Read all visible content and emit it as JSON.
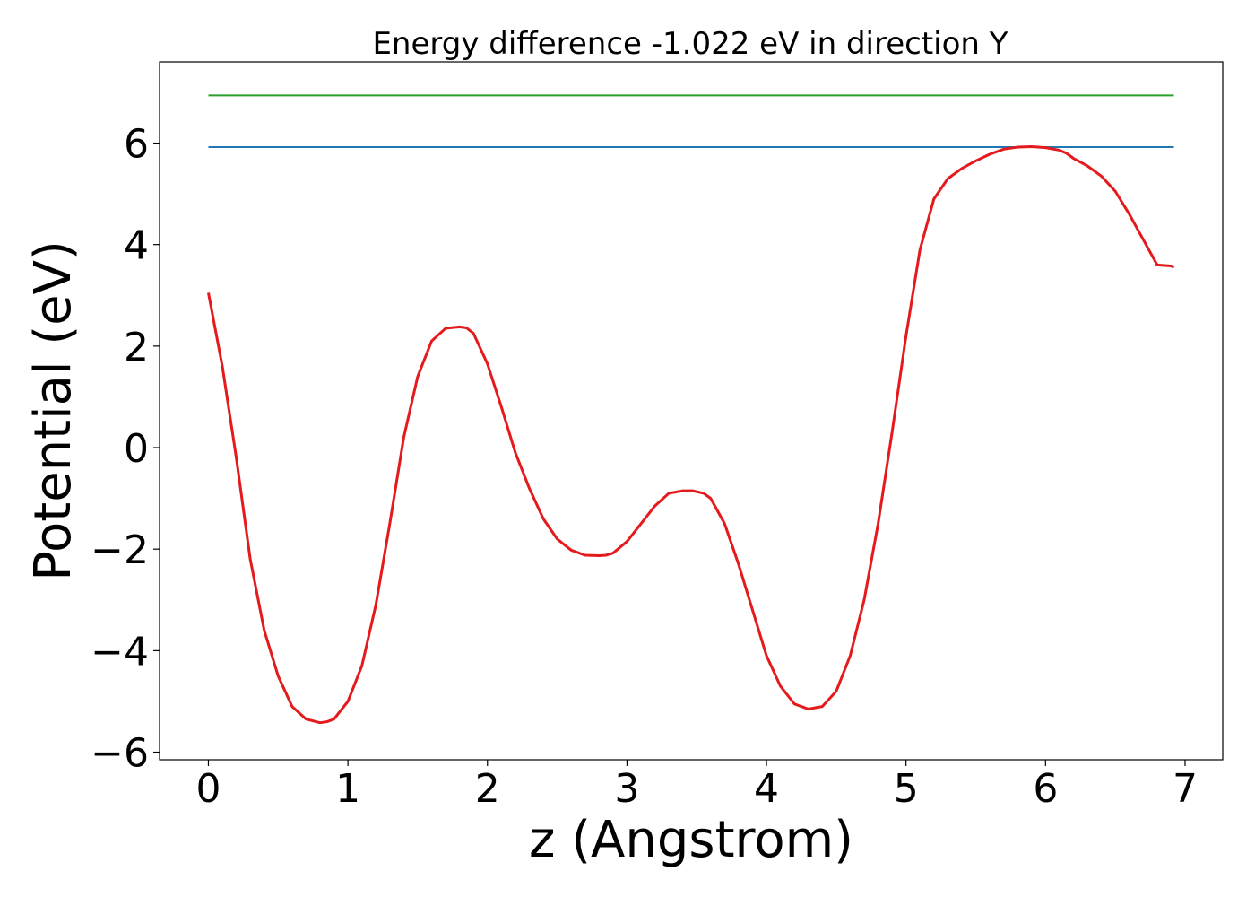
{
  "chart_data": {
    "type": "line",
    "title": "Energy difference -1.022 eV in direction Y",
    "xlabel": "z (Angstrom)",
    "ylabel": "Potential (eV)",
    "xlim": [
      -0.35,
      7.27
    ],
    "ylim": [
      -6.15,
      7.6
    ],
    "grid": false,
    "legend": "none",
    "xticks": [
      {
        "value": 0,
        "label": "0"
      },
      {
        "value": 1,
        "label": "1"
      },
      {
        "value": 2,
        "label": "2"
      },
      {
        "value": 3,
        "label": "3"
      },
      {
        "value": 4,
        "label": "4"
      },
      {
        "value": 5,
        "label": "5"
      },
      {
        "value": 6,
        "label": "6"
      },
      {
        "value": 7,
        "label": "7"
      }
    ],
    "yticks": [
      {
        "value": -6,
        "label": "−6"
      },
      {
        "value": -4,
        "label": "−4"
      },
      {
        "value": -2,
        "label": "−2"
      },
      {
        "value": 0,
        "label": "0"
      },
      {
        "value": 2,
        "label": "2"
      },
      {
        "value": 4,
        "label": "4"
      },
      {
        "value": 6,
        "label": "6"
      }
    ],
    "series": [
      {
        "color": "#2ca02c",
        "x": [
          0,
          6.92
        ],
        "y": [
          6.94,
          6.94
        ]
      },
      {
        "color": "#1f77b4",
        "x": [
          0,
          6.92
        ],
        "y": [
          5.92,
          5.92
        ]
      },
      {
        "color": "#e41a1c",
        "x": [
          0,
          0.1,
          0.2,
          0.3,
          0.4,
          0.5,
          0.6,
          0.7,
          0.8,
          0.85,
          0.9,
          1.0,
          1.1,
          1.2,
          1.3,
          1.4,
          1.5,
          1.6,
          1.7,
          1.8,
          1.85,
          1.9,
          2.0,
          2.1,
          2.2,
          2.3,
          2.4,
          2.5,
          2.6,
          2.7,
          2.8,
          2.85,
          2.9,
          3.0,
          3.1,
          3.2,
          3.3,
          3.4,
          3.47,
          3.55,
          3.6,
          3.7,
          3.8,
          3.9,
          4.0,
          4.1,
          4.2,
          4.3,
          4.4,
          4.5,
          4.6,
          4.7,
          4.8,
          4.9,
          5.0,
          5.1,
          5.2,
          5.3,
          5.4,
          5.5,
          5.6,
          5.7,
          5.8,
          5.9,
          6.0,
          6.1,
          6.15,
          6.2,
          6.3,
          6.4,
          6.5,
          6.6,
          6.7,
          6.8,
          6.9,
          6.92
        ],
        "y": [
          3.05,
          1.6,
          -0.2,
          -2.2,
          -3.6,
          -4.5,
          -5.1,
          -5.35,
          -5.42,
          -5.4,
          -5.35,
          -5.0,
          -4.3,
          -3.1,
          -1.5,
          0.2,
          1.4,
          2.1,
          2.35,
          2.38,
          2.36,
          2.25,
          1.65,
          0.8,
          -0.1,
          -0.8,
          -1.4,
          -1.8,
          -2.02,
          -2.12,
          -2.13,
          -2.12,
          -2.08,
          -1.85,
          -1.5,
          -1.15,
          -0.9,
          -0.85,
          -0.85,
          -0.9,
          -1.0,
          -1.5,
          -2.3,
          -3.2,
          -4.1,
          -4.7,
          -5.05,
          -5.15,
          -5.1,
          -4.8,
          -4.1,
          -3.0,
          -1.5,
          0.3,
          2.2,
          3.9,
          4.9,
          5.3,
          5.5,
          5.65,
          5.78,
          5.88,
          5.92,
          5.93,
          5.91,
          5.86,
          5.8,
          5.7,
          5.55,
          5.35,
          5.05,
          4.6,
          4.1,
          3.6,
          3.58,
          3.55
        ]
      }
    ]
  }
}
